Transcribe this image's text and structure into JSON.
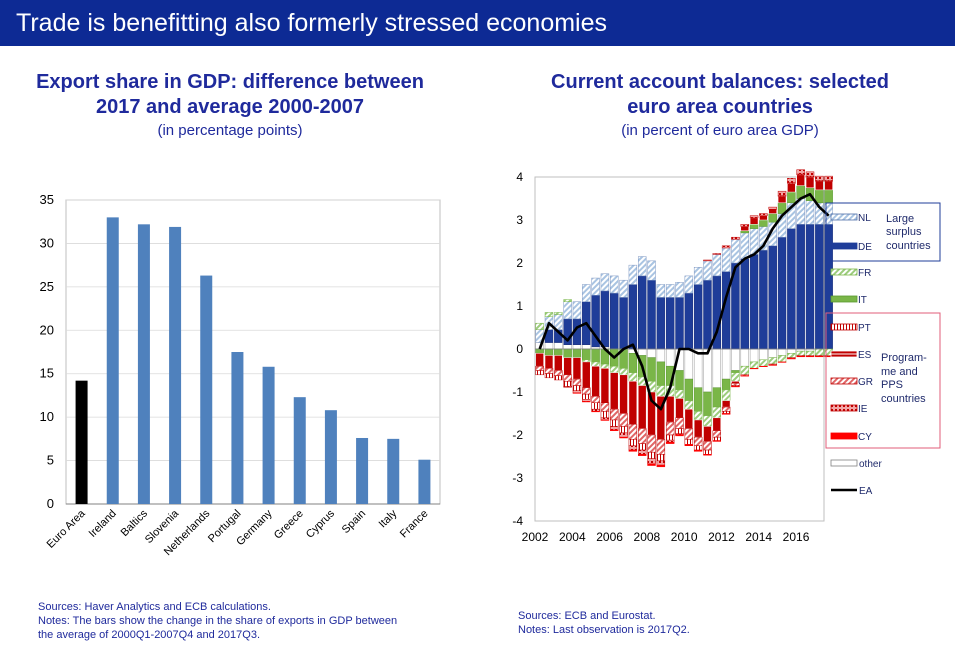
{
  "header": {
    "title": "Trade is benefitting also formerly stressed economies"
  },
  "left": {
    "title_line1": "Export share in GDP: difference between",
    "title_line2": "2017 and average 2000-2007",
    "subtitle": "(in percentage points)",
    "sources": "Sources: Haver Analytics and ECB calculations.",
    "notes_line1": "Notes: The bars show the change in the share of exports in GDP between",
    "notes_line2": "the average of 2000Q1-2007Q4 and 2017Q3."
  },
  "right": {
    "title_line1": "Current account balances: selected",
    "title_line2": "euro area countries",
    "subtitle": "(in percent of euro area GDP)",
    "sources": "Sources: ECB and Eurostat.",
    "notes": "Notes: Last observation is 2017Q2."
  },
  "colors": {
    "bar": "#4f81bd",
    "euro_area": "#000000",
    "nl": "#a9c4e2",
    "de": "#1f3d99",
    "fr": "#9ccc7c",
    "it": "#7ab648",
    "pt": "#ffffff",
    "es": "#c00000",
    "gr": "#e06666",
    "ie": "#f2a6a6",
    "cy": "#ff0000",
    "other": "#d9d9d9",
    "ea": "#000000",
    "box_blue": "#1f3d99",
    "box_red": "#e05d7a"
  },
  "chart_data": [
    {
      "type": "bar",
      "title": "Export share in GDP: difference between 2017 and average 2000-2007",
      "xlabel": "",
      "ylabel": "",
      "ylim": [
        0,
        35
      ],
      "yticks": [
        "0",
        "5",
        "10",
        "15",
        "20",
        "25",
        "30",
        "35"
      ],
      "categories": [
        "Euro Area",
        "Ireland",
        "Baltics",
        "Slovenia",
        "Netherlands",
        "Portugal",
        "Germany",
        "Greece",
        "Cyprus",
        "Spain",
        "Italy",
        "France"
      ],
      "values": [
        14.2,
        33.0,
        32.2,
        31.9,
        26.3,
        17.5,
        15.8,
        12.3,
        10.8,
        7.6,
        7.5,
        5.1
      ]
    },
    {
      "type": "area",
      "title": "Current account balances: selected euro area countries",
      "ylim": [
        -4,
        4
      ],
      "yticks": [
        "-4",
        "-3",
        "-2",
        "-1",
        "0",
        "1",
        "2",
        "3",
        "4"
      ],
      "xlim": [
        2002,
        2017.5
      ],
      "xticks": [
        "2002",
        "2004",
        "2006",
        "2008",
        "2010",
        "2012",
        "2014",
        "2016"
      ],
      "legend": [
        {
          "label": "NL",
          "key": "nl"
        },
        {
          "label": "DE",
          "key": "de"
        },
        {
          "label": "FR",
          "key": "fr"
        },
        {
          "label": "IT",
          "key": "it"
        },
        {
          "label": "PT",
          "key": "pt"
        },
        {
          "label": "ES",
          "key": "es"
        },
        {
          "label": "GR",
          "key": "gr"
        },
        {
          "label": "IE",
          "key": "ie"
        },
        {
          "label": "CY",
          "key": "cy"
        },
        {
          "label": "other",
          "key": "other"
        },
        {
          "label": "EA",
          "key": "ea"
        }
      ],
      "group_surplus": [
        "Large",
        "surplus",
        "countries"
      ],
      "group_programme": [
        "Program-",
        "me and",
        "PPS",
        "countries"
      ],
      "x": [
        2002,
        2002.5,
        2003,
        2003.5,
        2004,
        2004.5,
        2005,
        2005.5,
        2006,
        2006.5,
        2007,
        2007.5,
        2008,
        2008.5,
        2009,
        2009.5,
        2010,
        2010.5,
        2011,
        2011.5,
        2012,
        2012.5,
        2013,
        2013.5,
        2014,
        2014.5,
        2015,
        2015.5,
        2016,
        2016.5,
        2017,
        2017.5
      ],
      "series": [
        {
          "name": "other",
          "values": [
            0.15,
            0.15,
            0.15,
            0.1,
            0.1,
            0.1,
            0.05,
            0.05,
            0.0,
            0.0,
            -0.1,
            -0.15,
            -0.2,
            -0.3,
            -0.4,
            -0.5,
            -0.7,
            -0.9,
            -1.0,
            -0.9,
            -0.7,
            -0.5,
            -0.4,
            -0.3,
            -0.25,
            -0.2,
            -0.15,
            -0.1,
            -0.05,
            -0.05,
            0.0,
            0.0
          ]
        },
        {
          "name": "DE",
          "values": [
            0.0,
            0.3,
            0.3,
            0.6,
            0.6,
            1.0,
            1.2,
            1.3,
            1.3,
            1.2,
            1.5,
            1.7,
            1.6,
            1.2,
            1.2,
            1.2,
            1.3,
            1.5,
            1.6,
            1.7,
            1.8,
            2.0,
            2.1,
            2.2,
            2.3,
            2.4,
            2.6,
            2.8,
            2.9,
            2.9,
            2.9,
            2.9
          ]
        },
        {
          "name": "NL",
          "values": [
            0.3,
            0.3,
            0.35,
            0.4,
            0.4,
            0.4,
            0.4,
            0.4,
            0.4,
            0.4,
            0.45,
            0.45,
            0.45,
            0.3,
            0.3,
            0.35,
            0.4,
            0.4,
            0.45,
            0.5,
            0.55,
            0.55,
            0.6,
            0.6,
            0.55,
            0.55,
            0.55,
            0.6,
            0.6,
            0.55,
            0.5,
            0.5
          ]
        },
        {
          "name": "IT",
          "values": [
            -0.1,
            -0.15,
            -0.15,
            -0.2,
            -0.2,
            -0.25,
            -0.3,
            -0.35,
            -0.4,
            -0.45,
            -0.45,
            -0.5,
            -0.55,
            -0.55,
            -0.45,
            -0.45,
            -0.5,
            -0.55,
            -0.55,
            -0.45,
            -0.25,
            -0.05,
            0.05,
            0.1,
            0.15,
            0.2,
            0.25,
            0.25,
            0.3,
            0.3,
            0.3,
            0.3
          ]
        },
        {
          "name": "FR",
          "values": [
            0.15,
            0.1,
            0.05,
            0.05,
            0.0,
            -0.05,
            -0.1,
            -0.1,
            -0.15,
            -0.15,
            -0.2,
            -0.2,
            -0.25,
            -0.25,
            -0.25,
            -0.2,
            -0.2,
            -0.2,
            -0.25,
            -0.25,
            -0.25,
            -0.2,
            -0.2,
            -0.15,
            -0.15,
            -0.15,
            -0.15,
            -0.1,
            -0.1,
            -0.1,
            -0.15,
            -0.15
          ]
        },
        {
          "name": "ES",
          "values": [
            -0.3,
            -0.3,
            -0.35,
            -0.4,
            -0.5,
            -0.6,
            -0.7,
            -0.8,
            -0.85,
            -0.9,
            -1.0,
            -1.0,
            -1.0,
            -1.0,
            -0.6,
            -0.45,
            -0.45,
            -0.4,
            -0.35,
            -0.3,
            -0.15,
            -0.05,
            0.1,
            0.15,
            0.1,
            0.1,
            0.15,
            0.2,
            0.25,
            0.25,
            0.2,
            0.2
          ]
        },
        {
          "name": "GR",
          "values": [
            -0.1,
            -0.12,
            -0.12,
            -0.15,
            -0.15,
            -0.15,
            -0.15,
            -0.2,
            -0.25,
            -0.3,
            -0.35,
            -0.35,
            -0.4,
            -0.35,
            -0.3,
            -0.25,
            -0.25,
            -0.2,
            -0.2,
            -0.15,
            -0.1,
            -0.05,
            -0.02,
            0.0,
            0.0,
            -0.02,
            0.0,
            -0.02,
            -0.02,
            -0.02,
            -0.02,
            -0.02
          ]
        },
        {
          "name": "PT",
          "values": [
            -0.1,
            -0.1,
            -0.1,
            -0.12,
            -0.12,
            -0.12,
            -0.15,
            -0.15,
            -0.15,
            -0.15,
            -0.15,
            -0.15,
            -0.15,
            -0.15,
            -0.12,
            -0.12,
            -0.12,
            -0.1,
            -0.1,
            -0.08,
            -0.05,
            -0.02,
            0.0,
            0.0,
            0.0,
            0.0,
            0.02,
            0.02,
            0.02,
            0.02,
            0.02,
            0.02
          ]
        },
        {
          "name": "IE",
          "values": [
            0.0,
            0.0,
            0.0,
            -0.02,
            -0.05,
            -0.05,
            -0.05,
            -0.05,
            -0.08,
            -0.1,
            -0.1,
            -0.1,
            -0.12,
            -0.1,
            -0.05,
            -0.02,
            0.0,
            0.0,
            0.02,
            0.02,
            0.05,
            0.05,
            0.05,
            0.05,
            0.05,
            0.05,
            0.1,
            0.1,
            0.1,
            0.1,
            0.1,
            0.1
          ]
        },
        {
          "name": "CY",
          "values": [
            0.0,
            0.0,
            0.0,
            0.0,
            -0.01,
            -0.01,
            -0.01,
            -0.01,
            -0.02,
            -0.02,
            -0.03,
            -0.03,
            -0.04,
            -0.04,
            -0.03,
            -0.03,
            -0.03,
            -0.03,
            -0.02,
            -0.02,
            -0.02,
            -0.01,
            -0.01,
            -0.01,
            -0.01,
            -0.01,
            -0.01,
            -0.01,
            -0.01,
            -0.01,
            -0.01,
            -0.01
          ]
        },
        {
          "name": "EA",
          "values": [
            0.0,
            0.6,
            0.4,
            0.2,
            0.5,
            0.6,
            0.3,
            0.0,
            -0.2,
            0.0,
            0.1,
            -0.4,
            -1.2,
            -1.4,
            -0.9,
            0.0,
            0.0,
            -0.1,
            -0.1,
            0.4,
            1.2,
            1.9,
            2.1,
            2.2,
            2.4,
            2.8,
            3.1,
            3.3,
            3.5,
            3.6,
            3.3,
            3.1
          ]
        }
      ]
    }
  ]
}
